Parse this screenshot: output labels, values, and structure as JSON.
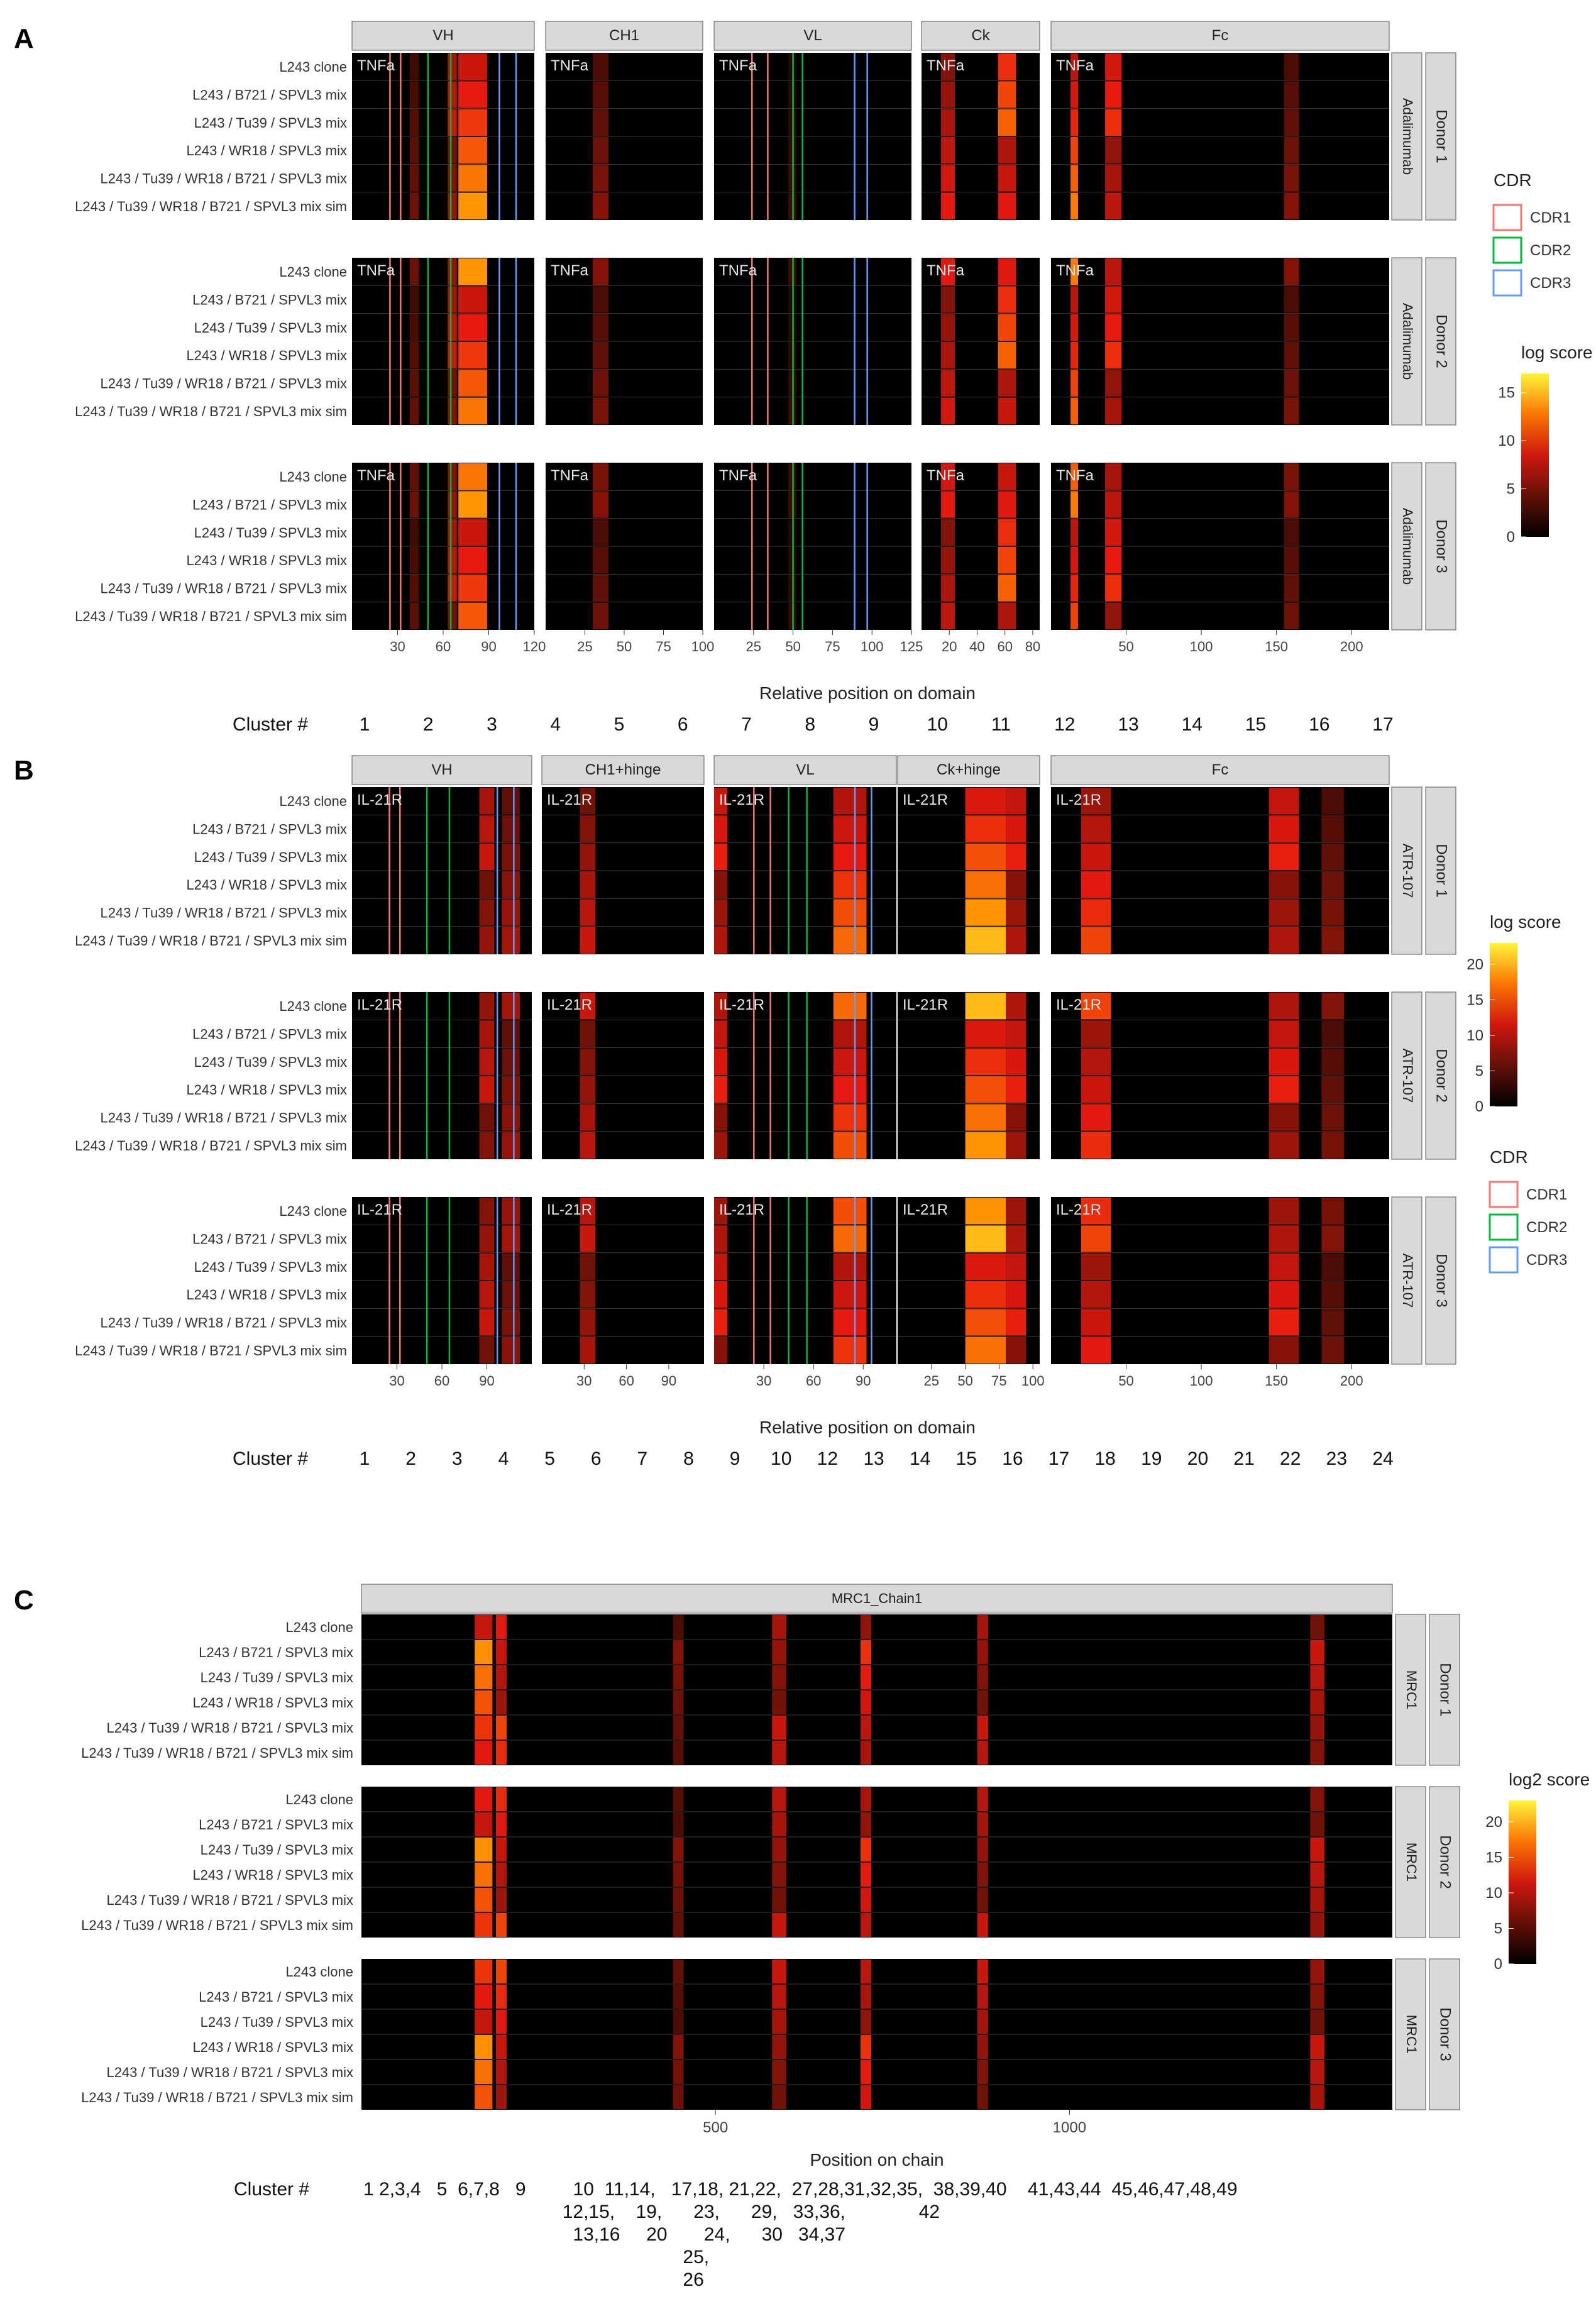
{
  "colors": {
    "strip_fill": "#d9d9d9",
    "panel_fill": "#000000",
    "cdr1": "#f8766d",
    "cdr2": "#00ba38",
    "cdr3": "#619cff",
    "row_line": "#3a3a3a"
  },
  "chart_data": [
    {
      "type": "heatmap",
      "label": "A",
      "antigen": "TNFa",
      "antibody": "Adalimumab",
      "domains": [
        "VH",
        "CH1",
        "VL",
        "Ck",
        "Fc"
      ],
      "donors": [
        "Donor 1",
        "Donor 2",
        "Donor 3"
      ],
      "rows": [
        "L243 clone",
        "L243 / B721 / SPVL3 mix",
        "L243 / Tu39 / SPVL3 mix",
        "L243 / WR18 / SPVL3 mix",
        "L243 / Tu39 / WR18 / B721 / SPVL3 mix",
        "L243 / Tu39 / WR18 / B721 / SPVL3 mix sim"
      ],
      "xlabel": "Relative position on domain",
      "axes": [
        {
          "domain": "VH",
          "range": [
            0,
            120
          ],
          "ticks": [
            30,
            60,
            90,
            120
          ],
          "cdr1": [
            25,
            32
          ],
          "cdr2": [
            50,
            65
          ],
          "cdr3": [
            97,
            108
          ],
          "hot": [
            [
              70,
              89,
              15
            ],
            [
              63,
              69,
              9
            ],
            [
              38,
              44,
              5
            ]
          ]
        },
        {
          "domain": "CH1",
          "range": [
            0,
            100
          ],
          "ticks": [
            25,
            50,
            75,
            100
          ],
          "hot": [
            [
              30,
              40,
              6
            ]
          ]
        },
        {
          "domain": "VL",
          "range": [
            0,
            125
          ],
          "ticks": [
            25,
            50,
            75,
            100,
            125
          ],
          "cdr1": [
            24,
            34
          ],
          "cdr2": [
            50,
            56
          ],
          "cdr3": [
            89,
            97
          ],
          "hot": [
            [
              47,
              52,
              3
            ]
          ]
        },
        {
          "domain": "Ck",
          "range": [
            0,
            85
          ],
          "ticks": [
            20,
            40,
            60,
            80
          ],
          "hot": [
            [
              14,
              24,
              10
            ],
            [
              55,
              68,
              13
            ]
          ]
        },
        {
          "domain": "Fc",
          "range": [
            0,
            225
          ],
          "ticks": [
            50,
            100,
            150,
            200
          ],
          "hot": [
            [
              13,
              18,
              14
            ],
            [
              36,
              47,
              11
            ],
            [
              155,
              165,
              6
            ]
          ]
        }
      ],
      "cluster_label": "Cluster #",
      "clusters": [
        "1",
        "2",
        "3",
        "4",
        "5",
        "6",
        "7",
        "8",
        "9",
        "10",
        "11",
        "12",
        "13",
        "14",
        "15",
        "16",
        "17"
      ],
      "legend": {
        "cdr_title": "CDR",
        "cdr_items": [
          "CDR1",
          "CDR2",
          "CDR3"
        ],
        "score_title": "log score",
        "score_ticks": [
          0,
          5,
          10,
          15
        ],
        "score_max": 17
      }
    },
    {
      "type": "heatmap",
      "label": "B",
      "antigen": "IL-21R",
      "antibody": "ATR-107",
      "domains": [
        "VH",
        "CH1+hinge",
        "VL",
        "Ck+hinge",
        "Fc"
      ],
      "donors": [
        "Donor 1",
        "Donor 2",
        "Donor 3"
      ],
      "rows": [
        "L243 clone",
        "L243 / B721 / SPVL3 mix",
        "L243 / Tu39 / SPVL3 mix",
        "L243 / WR18 / SPVL3 mix",
        "L243 / Tu39 / WR18 / B721 / SPVL3 mix",
        "L243 / Tu39 / WR18 / B721 / SPVL3 mix sim"
      ],
      "xlabel": "Relative position on domain",
      "axes": [
        {
          "domain": "VH",
          "range": [
            0,
            120
          ],
          "ticks": [
            30,
            60,
            90
          ],
          "cdr1": [
            25,
            32
          ],
          "cdr2": [
            50,
            65
          ],
          "cdr3": [
            97,
            108
          ],
          "hot": [
            [
              100,
              112,
              10
            ],
            [
              85,
              95,
              12
            ]
          ]
        },
        {
          "domain": "CH1+hinge",
          "range": [
            0,
            115
          ],
          "ticks": [
            30,
            60,
            90
          ],
          "hot": [
            [
              27,
              38,
              12
            ]
          ]
        },
        {
          "domain": "VL",
          "range": [
            0,
            110
          ],
          "ticks": [
            30,
            60,
            90
          ],
          "cdr1": [
            24,
            34
          ],
          "cdr2": [
            45,
            56
          ],
          "cdr3": [
            85,
            95
          ],
          "hot": [
            [
              72,
              92,
              18
            ],
            [
              0,
              8,
              14
            ]
          ]
        },
        {
          "domain": "Ck+hinge",
          "range": [
            0,
            105
          ],
          "ticks": [
            25,
            50,
            75,
            100
          ],
          "hot": [
            [
              50,
              80,
              22
            ],
            [
              80,
              95,
              14
            ]
          ]
        },
        {
          "domain": "Fc",
          "range": [
            0,
            225
          ],
          "ticks": [
            50,
            100,
            150,
            200
          ],
          "hot": [
            [
              20,
              40,
              16
            ],
            [
              145,
              165,
              14
            ],
            [
              180,
              195,
              8
            ]
          ]
        }
      ],
      "cluster_label": "Cluster #",
      "clusters": [
        "1",
        "2",
        "3",
        "4",
        "5",
        "6",
        "7",
        "8",
        "9",
        "10",
        "12",
        "13",
        "14",
        "15",
        "16",
        "17",
        "18",
        "19",
        "20",
        "21",
        "22",
        "23",
        "24"
      ],
      "legend": {
        "score_title": "log score",
        "score_ticks": [
          0,
          5,
          10,
          15,
          20
        ],
        "score_max": 23,
        "cdr_title": "CDR",
        "cdr_items": [
          "CDR1",
          "CDR2",
          "CDR3"
        ]
      }
    },
    {
      "type": "heatmap",
      "label": "C",
      "strip": "MRC1_Chain1",
      "antibody": "MRC1",
      "donors": [
        "Donor 1",
        "Donor 2",
        "Donor 3"
      ],
      "rows": [
        "L243 clone",
        "L243 / B721 / SPVL3 mix",
        "L243 / Tu39 / SPVL3 mix",
        "L243 / WR18 / SPVL3 mix",
        "L243 / Tu39 / WR18 / B721 / SPVL3 mix",
        "L243 / Tu39 / WR18 / B721 / SPVL3 mix sim"
      ],
      "xlabel": "Position on chain",
      "x_range": [
        0,
        1456
      ],
      "ticks": [
        500,
        1000
      ],
      "hot": [
        [
          160,
          185,
          20
        ],
        [
          190,
          205,
          16
        ],
        [
          440,
          455,
          8
        ],
        [
          580,
          600,
          12
        ],
        [
          705,
          720,
          15
        ],
        [
          870,
          885,
          12
        ],
        [
          1340,
          1360,
          12
        ]
      ],
      "cluster_label": "Cluster #",
      "cluster_lines": [
        "1 2,3,4   5  6,7,8   9         10  11,14,   17,18, 21,22,  27,28,31,32,35,  38,39,40    41,43,44  45,46,47,48,49",
        "                                      12,15,    19,      23,      29,   33,36,              42",
        "                                        13,16     20       24,      30   34,37",
        "                                                             25,",
        "                                                             26"
      ],
      "legend": {
        "score_title": "log2 score",
        "score_ticks": [
          0,
          5,
          10,
          15,
          20
        ],
        "score_max": 23
      }
    }
  ]
}
